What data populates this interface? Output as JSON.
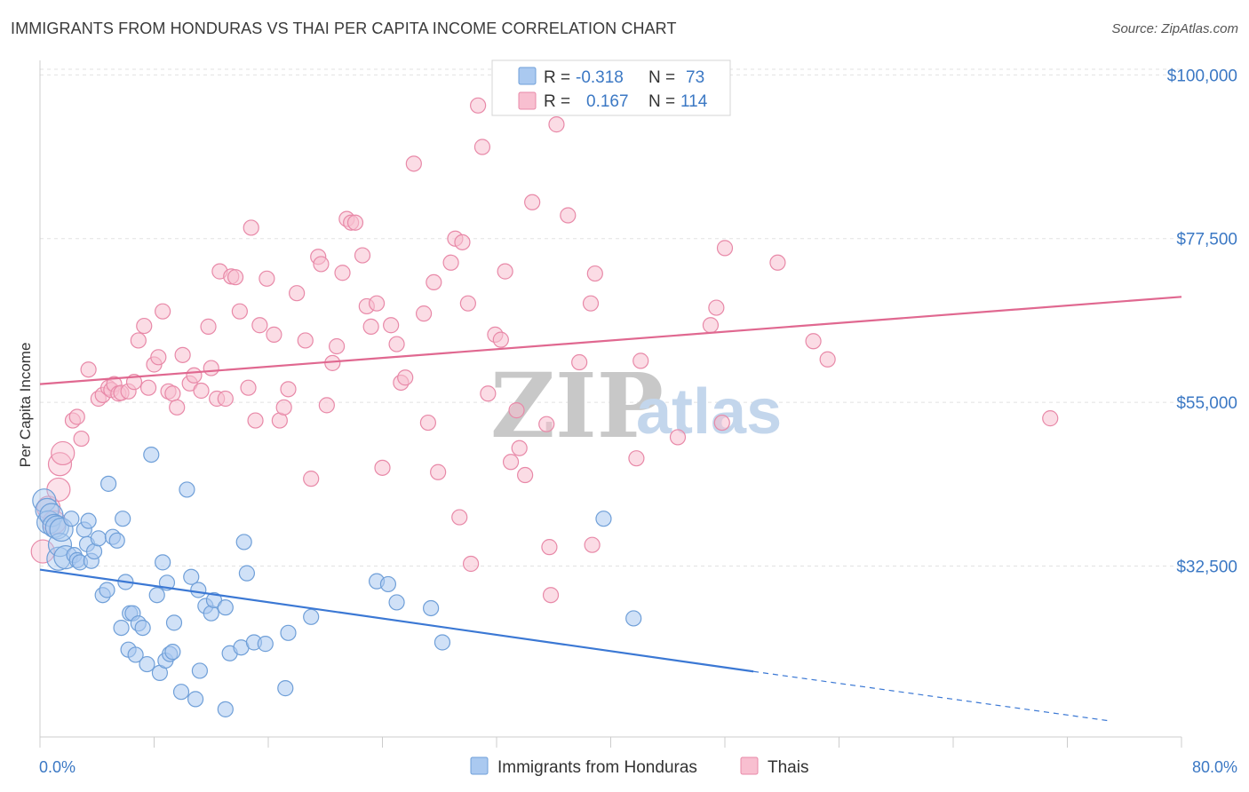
{
  "header": {
    "title": "IMMIGRANTS FROM HONDURAS VS THAI PER CAPITA INCOME CORRELATION CHART",
    "source": "Source: ZipAtlas.com"
  },
  "legend": {
    "rows": [
      {
        "r_label": "R =",
        "r_value": "-0.318",
        "n_label": "N =",
        "n_value": "73",
        "color": "#aac9f0",
        "stroke": "#6f9fd8"
      },
      {
        "r_label": "R =",
        "r_value": "0.167",
        "n_label": "N =",
        "n_value": "114",
        "color": "#f8bfd0",
        "stroke": "#e889a8"
      }
    ]
  },
  "bottom_legend": [
    {
      "label": "Immigrants from Honduras",
      "color": "#aac9f0",
      "stroke": "#6f9fd8"
    },
    {
      "label": "Thais",
      "color": "#f8bfd0",
      "stroke": "#e889a8"
    }
  ],
  "watermark": {
    "zip": "ZIP",
    "atlas": "atlas"
  },
  "chart_data": {
    "type": "scatter",
    "title": "IMMIGRANTS FROM HONDURAS VS THAI PER CAPITA INCOME CORRELATION CHART",
    "xlabel": "",
    "ylabel": "Per Capita Income",
    "xlim": [
      0,
      80
    ],
    "ylim": [
      9000,
      102000
    ],
    "x_tick_labels": [
      "0.0%",
      "80.0%"
    ],
    "y_ticks": [
      32500,
      55000,
      77500,
      100000
    ],
    "y_tick_labels": [
      "$32,500",
      "$55,000",
      "$77,500",
      "$100,000"
    ],
    "grid": true,
    "legend_position": "top-center",
    "series": [
      {
        "name": "Immigrants from Honduras",
        "color": "#6f9fd8",
        "fill": "#aac9f0",
        "r": -0.318,
        "n": 73,
        "trend": {
          "x0": 0,
          "y0": 32000,
          "x1": 50,
          "y1": 18000,
          "dashed_to_x": 75,
          "dashed_to_y": 11200
        },
        "points": [
          [
            0.3,
            41500
          ],
          [
            0.5,
            40200
          ],
          [
            0.6,
            38500
          ],
          [
            0.8,
            39500
          ],
          [
            1.0,
            38000
          ],
          [
            1.2,
            37800
          ],
          [
            1.3,
            33500
          ],
          [
            1.4,
            35400
          ],
          [
            1.5,
            37500
          ],
          [
            1.8,
            33700
          ],
          [
            2.2,
            39000
          ],
          [
            2.4,
            34000
          ],
          [
            2.6,
            33300
          ],
          [
            2.8,
            33000
          ],
          [
            3.1,
            37500
          ],
          [
            3.3,
            35500
          ],
          [
            3.4,
            38700
          ],
          [
            3.6,
            33200
          ],
          [
            3.8,
            34500
          ],
          [
            4.1,
            36300
          ],
          [
            4.4,
            28500
          ],
          [
            4.7,
            29200
          ],
          [
            4.8,
            43800
          ],
          [
            5.1,
            36500
          ],
          [
            5.4,
            36000
          ],
          [
            5.7,
            24000
          ],
          [
            5.8,
            39000
          ],
          [
            6.0,
            30300
          ],
          [
            6.2,
            21000
          ],
          [
            6.3,
            26000
          ],
          [
            6.5,
            26000
          ],
          [
            6.7,
            20300
          ],
          [
            6.9,
            24600
          ],
          [
            7.2,
            24000
          ],
          [
            7.5,
            19000
          ],
          [
            7.8,
            47800
          ],
          [
            8.2,
            28500
          ],
          [
            8.4,
            17800
          ],
          [
            8.6,
            33000
          ],
          [
            8.8,
            19500
          ],
          [
            8.9,
            30200
          ],
          [
            9.1,
            20400
          ],
          [
            9.3,
            20700
          ],
          [
            9.4,
            24700
          ],
          [
            9.9,
            15200
          ],
          [
            10.3,
            43000
          ],
          [
            10.6,
            31000
          ],
          [
            10.9,
            14200
          ],
          [
            11.1,
            29200
          ],
          [
            11.2,
            18100
          ],
          [
            11.6,
            27000
          ],
          [
            12.0,
            26000
          ],
          [
            12.2,
            27800
          ],
          [
            13.0,
            26800
          ],
          [
            13.0,
            12800
          ],
          [
            13.3,
            20500
          ],
          [
            14.1,
            21300
          ],
          [
            14.3,
            35800
          ],
          [
            14.5,
            31500
          ],
          [
            15.0,
            22000
          ],
          [
            15.8,
            21800
          ],
          [
            17.2,
            15700
          ],
          [
            17.4,
            23300
          ],
          [
            19.0,
            25500
          ],
          [
            23.6,
            30400
          ],
          [
            24.4,
            30000
          ],
          [
            25.0,
            27500
          ],
          [
            27.4,
            26700
          ],
          [
            28.2,
            22000
          ],
          [
            39.5,
            39000
          ],
          [
            41.6,
            25300
          ]
        ]
      },
      {
        "name": "Thais",
        "color": "#e889a8",
        "fill": "#f8bfd0",
        "r": 0.167,
        "n": 114,
        "trend": {
          "x0": 0,
          "y0": 57500,
          "x1": 80,
          "y1": 69500
        },
        "points": [
          [
            0.2,
            34500
          ],
          [
            0.6,
            40500
          ],
          [
            1.0,
            38500
          ],
          [
            1.3,
            43000
          ],
          [
            1.4,
            46500
          ],
          [
            1.6,
            48000
          ],
          [
            2.3,
            52500
          ],
          [
            2.6,
            53000
          ],
          [
            2.9,
            50000
          ],
          [
            3.4,
            59500
          ],
          [
            4.1,
            55500
          ],
          [
            4.4,
            56000
          ],
          [
            4.8,
            57000
          ],
          [
            5.0,
            56700
          ],
          [
            5.2,
            57500
          ],
          [
            5.5,
            56200
          ],
          [
            5.7,
            56300
          ],
          [
            6.2,
            56500
          ],
          [
            6.6,
            57800
          ],
          [
            6.9,
            63500
          ],
          [
            7.3,
            65500
          ],
          [
            7.6,
            57000
          ],
          [
            8.0,
            60200
          ],
          [
            8.3,
            61200
          ],
          [
            8.6,
            67500
          ],
          [
            9.0,
            56500
          ],
          [
            9.3,
            56200
          ],
          [
            9.6,
            54300
          ],
          [
            10.0,
            61500
          ],
          [
            10.5,
            57600
          ],
          [
            10.8,
            58700
          ],
          [
            11.3,
            56600
          ],
          [
            11.8,
            65400
          ],
          [
            12.0,
            59700
          ],
          [
            12.4,
            55500
          ],
          [
            12.6,
            73000
          ],
          [
            13.0,
            55500
          ],
          [
            13.4,
            72300
          ],
          [
            13.7,
            72200
          ],
          [
            14.0,
            67500
          ],
          [
            14.6,
            57000
          ],
          [
            14.8,
            79000
          ],
          [
            15.1,
            52500
          ],
          [
            15.4,
            65600
          ],
          [
            15.9,
            72000
          ],
          [
            16.4,
            64300
          ],
          [
            16.8,
            52500
          ],
          [
            17.1,
            54300
          ],
          [
            17.4,
            56800
          ],
          [
            18.0,
            70000
          ],
          [
            18.6,
            63500
          ],
          [
            19.0,
            44500
          ],
          [
            19.5,
            75000
          ],
          [
            19.7,
            74000
          ],
          [
            20.1,
            54600
          ],
          [
            20.5,
            60400
          ],
          [
            20.8,
            62700
          ],
          [
            21.2,
            72800
          ],
          [
            21.5,
            80200
          ],
          [
            21.8,
            79700
          ],
          [
            22.1,
            79700
          ],
          [
            22.6,
            75200
          ],
          [
            22.9,
            68200
          ],
          [
            23.2,
            65400
          ],
          [
            23.6,
            68600
          ],
          [
            24.0,
            46000
          ],
          [
            24.6,
            65600
          ],
          [
            25.0,
            63000
          ],
          [
            25.3,
            57700
          ],
          [
            25.6,
            58400
          ],
          [
            26.2,
            87800
          ],
          [
            26.9,
            67200
          ],
          [
            27.2,
            52200
          ],
          [
            27.6,
            71500
          ],
          [
            27.9,
            45400
          ],
          [
            28.8,
            74200
          ],
          [
            29.1,
            77500
          ],
          [
            29.4,
            39200
          ],
          [
            29.6,
            77000
          ],
          [
            30.0,
            68600
          ],
          [
            30.2,
            32800
          ],
          [
            30.7,
            95800
          ],
          [
            31.0,
            90100
          ],
          [
            31.4,
            56200
          ],
          [
            31.9,
            64300
          ],
          [
            32.3,
            63600
          ],
          [
            32.6,
            73000
          ],
          [
            33.0,
            46800
          ],
          [
            33.4,
            53900
          ],
          [
            33.6,
            48700
          ],
          [
            34.0,
            45000
          ],
          [
            34.5,
            82500
          ],
          [
            35.5,
            52000
          ],
          [
            35.7,
            35100
          ],
          [
            35.8,
            28500
          ],
          [
            36.2,
            93200
          ],
          [
            37.0,
            80700
          ],
          [
            37.8,
            60500
          ],
          [
            38.6,
            68600
          ],
          [
            38.7,
            35400
          ],
          [
            38.9,
            72700
          ],
          [
            41.8,
            47300
          ],
          [
            42.1,
            60700
          ],
          [
            44.7,
            50200
          ],
          [
            47.0,
            65600
          ],
          [
            47.4,
            68000
          ],
          [
            47.8,
            52200
          ],
          [
            48.0,
            76200
          ],
          [
            51.7,
            74200
          ],
          [
            54.2,
            63400
          ],
          [
            55.2,
            60900
          ],
          [
            70.8,
            52800
          ]
        ]
      }
    ]
  }
}
